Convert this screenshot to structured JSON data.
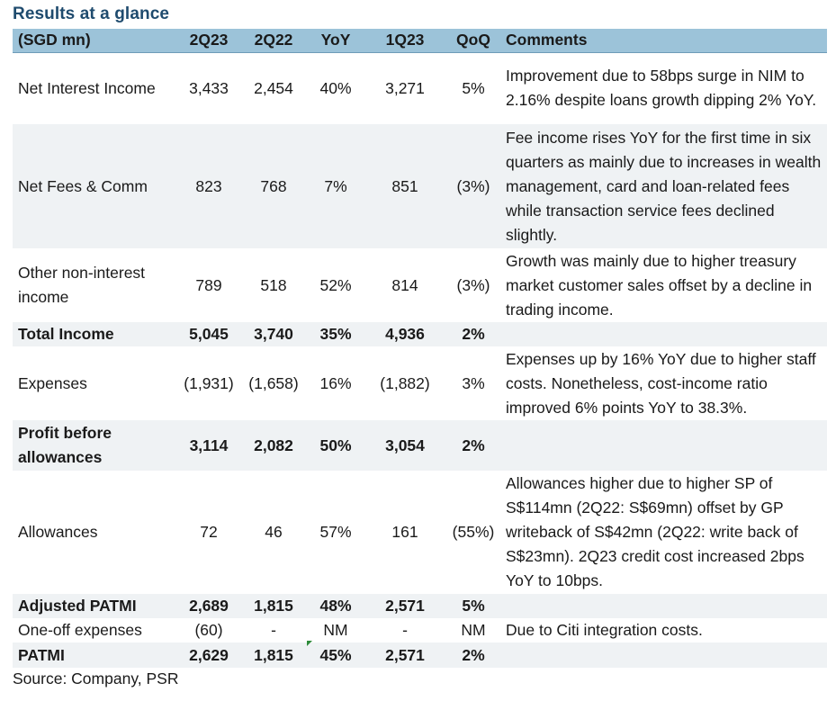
{
  "title": "Results at a glance",
  "header": {
    "label": "(SGD mn)",
    "col_2q23": "2Q23",
    "col_2q22": "2Q22",
    "col_yoy": "YoY",
    "col_1q23": "1Q23",
    "col_qoq": "QoQ",
    "col_comments": "Comments"
  },
  "rows": [
    {
      "label": "Net Interest Income",
      "v2q23": "3,433",
      "v2q22": "2,454",
      "yoy": "40%",
      "v1q23": "3,271",
      "qoq": "5%",
      "comment": "Improvement due to 58bps surge in NIM to 2.16% despite loans growth dipping 2% YoY."
    },
    {
      "label": "Net Fees & Comm",
      "v2q23": "823",
      "v2q22": "768",
      "yoy": "7%",
      "v1q23": "851",
      "qoq": "(3%)",
      "comment": "Fee income rises YoY for the first time in six quarters as mainly due to increases in wealth management, card and loan-related fees while transaction service fees declined slightly."
    },
    {
      "label": "Other non-interest income",
      "v2q23": "789",
      "v2q22": "518",
      "yoy": "52%",
      "v1q23": "814",
      "qoq": "(3%)",
      "comment": "Growth was mainly due to higher treasury market customer sales offset by a decline in trading income."
    },
    {
      "label": "Total Income",
      "v2q23": "5,045",
      "v2q22": "3,740",
      "yoy": "35%",
      "v1q23": "4,936",
      "qoq": "2%",
      "comment": ""
    },
    {
      "label": "Expenses",
      "v2q23": "(1,931)",
      "v2q22": "(1,658)",
      "yoy": "16%",
      "v1q23": "(1,882)",
      "qoq": "3%",
      "comment": "Expenses up by 16% YoY due to higher staff costs. Nonetheless, cost-income ratio improved 6% points YoY to 38.3%."
    },
    {
      "label": "Profit before allowances",
      "v2q23": "3,114",
      "v2q22": "2,082",
      "yoy": "50%",
      "v1q23": "3,054",
      "qoq": "2%",
      "comment": ""
    },
    {
      "label": "Allowances",
      "v2q23": "72",
      "v2q22": "46",
      "yoy": "57%",
      "v1q23": "161",
      "qoq": "(55%)",
      "comment": "Allowances higher due to higher SP of S$114mn (2Q22: S$69mn) offset by GP writeback of S$42mn (2Q22: write back of S$23mn). 2Q23 credit cost increased 2bps YoY to 10bps."
    },
    {
      "label": "Adjusted PATMI",
      "v2q23": "2,689",
      "v2q22": "1,815",
      "yoy": "48%",
      "v1q23": "2,571",
      "qoq": "5%",
      "comment": ""
    },
    {
      "label": "One-off expenses",
      "v2q23": "(60)",
      "v2q22": "-",
      "yoy": "NM",
      "v1q23": "-",
      "qoq": "NM",
      "comment": "Due to Citi integration costs."
    },
    {
      "label": "PATMI",
      "v2q23": "2,629",
      "v2q22": "1,815",
      "yoy": "45%",
      "v1q23": "2,571",
      "qoq": "2%",
      "comment": ""
    }
  ],
  "source": "Source: Company, PSR",
  "colors": {
    "header_bg": "#9cc3d9",
    "title": "#1f4b6e",
    "row_shade": "#eff2f4"
  }
}
